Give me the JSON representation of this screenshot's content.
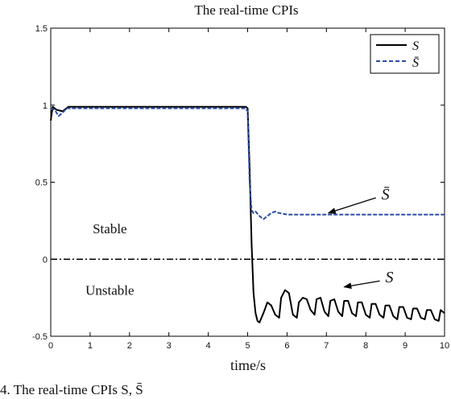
{
  "chart_data": {
    "type": "line",
    "title": "The real-time CPIs",
    "xlabel": "time/s",
    "ylabel": "",
    "xlim": [
      0,
      10
    ],
    "ylim": [
      -0.5,
      1.5
    ],
    "xticks": [
      0,
      1,
      2,
      3,
      4,
      5,
      6,
      7,
      8,
      9,
      10
    ],
    "yticks": [
      -0.5,
      0,
      0.5,
      1,
      1.5
    ],
    "xtick_labels": [
      "0",
      "1",
      "2",
      "3",
      "4",
      "5",
      "6",
      "7",
      "8",
      "9",
      "10"
    ],
    "ytick_labels": [
      "-0.5",
      "0",
      "0.5",
      "1",
      "1.5"
    ],
    "grid": false,
    "legend_position": "top-right",
    "reference_line": {
      "y": 0,
      "style": "dash-dot"
    },
    "series": [
      {
        "name": "S",
        "color": "#000000",
        "style": "solid",
        "points": [
          [
            0,
            0.9
          ],
          [
            0.05,
            0.99
          ],
          [
            0.15,
            0.97
          ],
          [
            0.3,
            0.96
          ],
          [
            0.45,
            0.99
          ],
          [
            0.6,
            0.99
          ],
          [
            1,
            0.99
          ],
          [
            2,
            0.99
          ],
          [
            3,
            0.99
          ],
          [
            4,
            0.99
          ],
          [
            4.95,
            0.99
          ],
          [
            5.0,
            0.98
          ],
          [
            5.05,
            0.6
          ],
          [
            5.1,
            0.1
          ],
          [
            5.15,
            -0.22
          ],
          [
            5.2,
            -0.35
          ],
          [
            5.25,
            -0.4
          ],
          [
            5.3,
            -0.41
          ],
          [
            5.4,
            -0.35
          ],
          [
            5.5,
            -0.28
          ],
          [
            5.6,
            -0.3
          ],
          [
            5.7,
            -0.36
          ],
          [
            5.8,
            -0.38
          ],
          [
            5.85,
            -0.25
          ],
          [
            5.95,
            -0.2
          ],
          [
            6.05,
            -0.22
          ],
          [
            6.15,
            -0.36
          ],
          [
            6.25,
            -0.38
          ],
          [
            6.3,
            -0.28
          ],
          [
            6.4,
            -0.25
          ],
          [
            6.5,
            -0.26
          ],
          [
            6.6,
            -0.33
          ],
          [
            6.7,
            -0.36
          ],
          [
            6.75,
            -0.26
          ],
          [
            6.85,
            -0.25
          ],
          [
            6.95,
            -0.34
          ],
          [
            7.05,
            -0.37
          ],
          [
            7.1,
            -0.27
          ],
          [
            7.2,
            -0.26
          ],
          [
            7.3,
            -0.34
          ],
          [
            7.4,
            -0.37
          ],
          [
            7.45,
            -0.27
          ],
          [
            7.55,
            -0.27
          ],
          [
            7.65,
            -0.35
          ],
          [
            7.75,
            -0.37
          ],
          [
            7.8,
            -0.28
          ],
          [
            7.9,
            -0.28
          ],
          [
            8.0,
            -0.36
          ],
          [
            8.1,
            -0.38
          ],
          [
            8.15,
            -0.29
          ],
          [
            8.25,
            -0.29
          ],
          [
            8.35,
            -0.36
          ],
          [
            8.45,
            -0.38
          ],
          [
            8.5,
            -0.3
          ],
          [
            8.6,
            -0.3
          ],
          [
            8.7,
            -0.37
          ],
          [
            8.8,
            -0.39
          ],
          [
            8.85,
            -0.31
          ],
          [
            8.95,
            -0.31
          ],
          [
            9.05,
            -0.38
          ],
          [
            9.15,
            -0.39
          ],
          [
            9.2,
            -0.32
          ],
          [
            9.3,
            -0.32
          ],
          [
            9.4,
            -0.38
          ],
          [
            9.5,
            -0.39
          ],
          [
            9.55,
            -0.33
          ],
          [
            9.65,
            -0.33
          ],
          [
            9.75,
            -0.39
          ],
          [
            9.85,
            -0.4
          ],
          [
            9.9,
            -0.33
          ],
          [
            9.95,
            -0.34
          ],
          [
            10,
            -0.35
          ]
        ]
      },
      {
        "name": "S̄",
        "color": "#2b4ea8",
        "style": "dashed",
        "points": [
          [
            0,
            0.98
          ],
          [
            0.1,
            0.97
          ],
          [
            0.2,
            0.93
          ],
          [
            0.3,
            0.95
          ],
          [
            0.4,
            0.98
          ],
          [
            0.6,
            0.98
          ],
          [
            1,
            0.98
          ],
          [
            2,
            0.98
          ],
          [
            3,
            0.98
          ],
          [
            4,
            0.98
          ],
          [
            4.95,
            0.98
          ],
          [
            5.0,
            0.96
          ],
          [
            5.05,
            0.5
          ],
          [
            5.1,
            0.32
          ],
          [
            5.15,
            0.3
          ],
          [
            5.2,
            0.31
          ],
          [
            5.3,
            0.28
          ],
          [
            5.4,
            0.26
          ],
          [
            5.5,
            0.28
          ],
          [
            5.6,
            0.3
          ],
          [
            5.7,
            0.31
          ],
          [
            5.8,
            0.3
          ],
          [
            6.0,
            0.29
          ],
          [
            7,
            0.29
          ],
          [
            8,
            0.29
          ],
          [
            9,
            0.29
          ],
          [
            10,
            0.29
          ]
        ]
      }
    ],
    "annotations": [
      {
        "text": "Stable",
        "x": 1.5,
        "y": 0.2
      },
      {
        "text": "Unstable",
        "x": 1.5,
        "y": -0.2
      },
      {
        "text": "S̄",
        "x": 8.5,
        "y": 0.42,
        "arrow_to": [
          7.05,
          0.3
        ]
      },
      {
        "text": "S",
        "x": 8.6,
        "y": -0.12,
        "arrow_to": [
          7.45,
          -0.18
        ]
      }
    ]
  },
  "caption": "4. The real-time CPIs S, S̄"
}
